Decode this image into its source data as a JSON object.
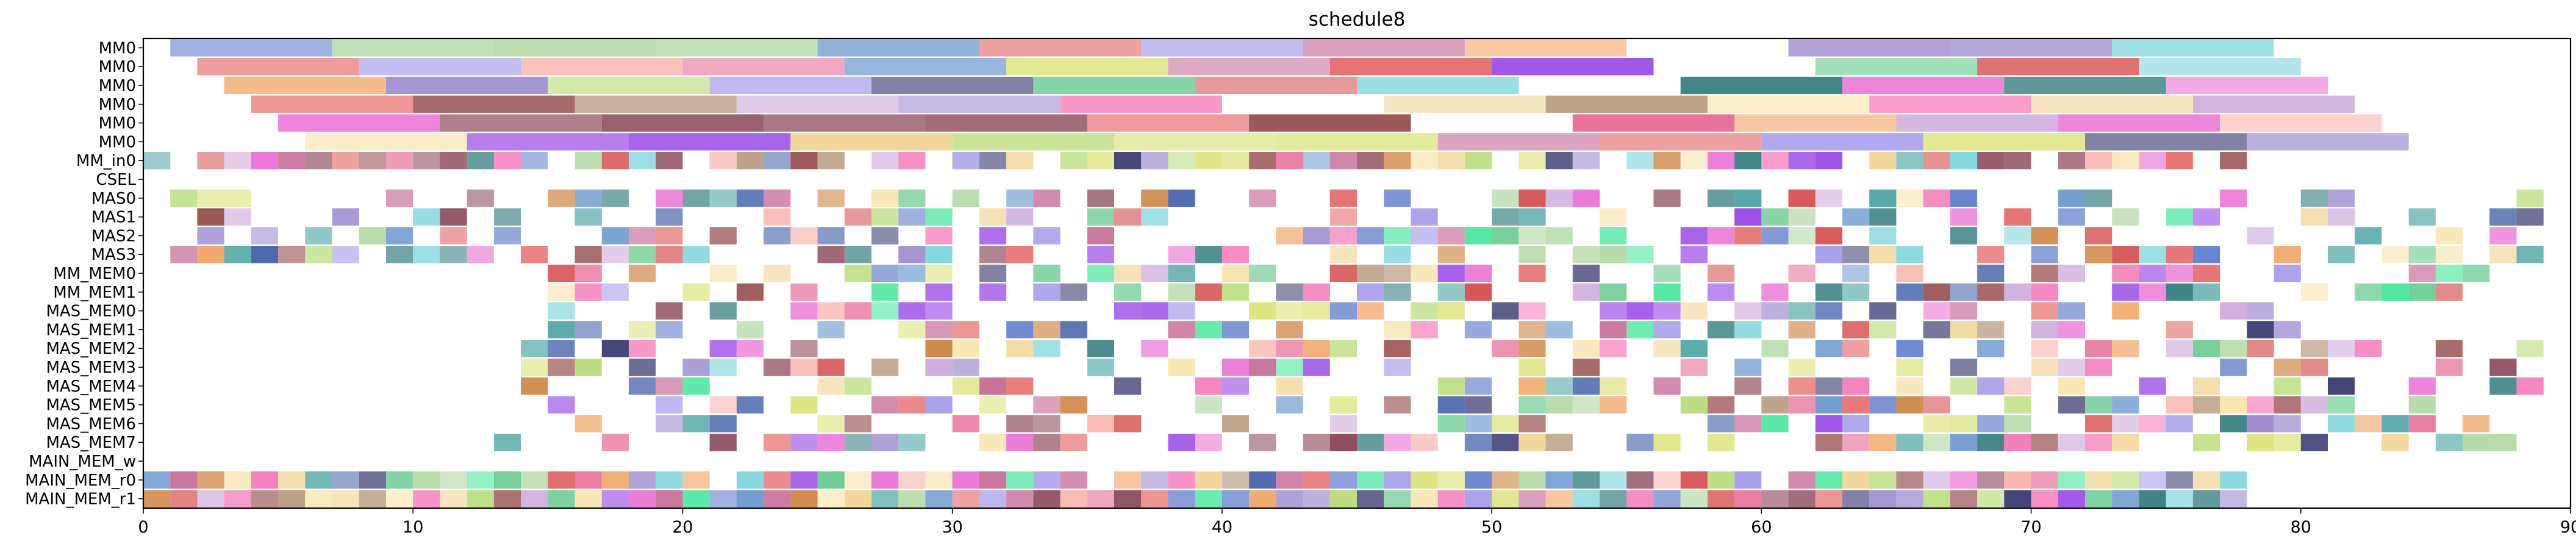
{
  "chart_data": {
    "type": "gantt",
    "title": "schedule8",
    "xlim": [
      0,
      90
    ],
    "x_ticks": [
      "0",
      "10",
      "20",
      "30",
      "40",
      "50",
      "60",
      "70",
      "80",
      "90"
    ],
    "grid": false,
    "legend": "none",
    "rows": [
      "MM0",
      "MM0",
      "MM0",
      "MM0",
      "MM0",
      "MM0",
      "MM_in0",
      "CSEL",
      "MAS0",
      "MAS1",
      "MAS2",
      "MAS3",
      "MM_MEM0",
      "MM_MEM1",
      "MAS_MEM0",
      "MAS_MEM1",
      "MAS_MEM2",
      "MAS_MEM3",
      "MAS_MEM4",
      "MAS_MEM5",
      "MAS_MEM6",
      "MAS_MEM7",
      "MAIN_MEM_w",
      "MAIN_MEM_r0",
      "MAIN_MEM_r1"
    ],
    "long_task_rows": [
      {
        "row": 0,
        "start": 1,
        "duration": 6,
        "end": 79,
        "skip": [
          60
        ]
      },
      {
        "row": 1,
        "start": 2,
        "duration": 6,
        "end": 80,
        "skip": [
          57
        ]
      },
      {
        "row": 2,
        "start": 3,
        "duration": 6,
        "end": 81,
        "skip": [
          52
        ]
      },
      {
        "row": 3,
        "start": 4,
        "duration": 6,
        "end": 82,
        "skip": [
          40
        ]
      },
      {
        "row": 4,
        "start": 5,
        "duration": 6,
        "end": 83,
        "skip": [
          49
        ]
      },
      {
        "row": 5,
        "start": 6,
        "duration": 6,
        "end": 85,
        "skip": []
      }
    ],
    "cell_rows": [
      {
        "row": 6,
        "start": 0,
        "end": 78,
        "density": 0.82
      },
      {
        "row": 8,
        "start": 1,
        "end": 89,
        "density": 0.55
      },
      {
        "row": 9,
        "start": 1,
        "end": 89,
        "density": 0.55
      },
      {
        "row": 10,
        "start": 1,
        "end": 89,
        "density": 0.55
      },
      {
        "row": 11,
        "start": 1,
        "end": 90,
        "density": 0.6
      },
      {
        "row": 12,
        "start": 13,
        "end": 88,
        "density": 0.62
      },
      {
        "row": 13,
        "start": 13,
        "end": 87,
        "density": 0.58
      },
      {
        "row": 14,
        "start": 14,
        "end": 80,
        "density": 0.52
      },
      {
        "row": 15,
        "start": 14,
        "end": 80,
        "density": 0.5
      },
      {
        "row": 16,
        "start": 14,
        "end": 89,
        "density": 0.5
      },
      {
        "row": 17,
        "start": 14,
        "end": 88,
        "density": 0.5
      },
      {
        "row": 18,
        "start": 14,
        "end": 89,
        "density": 0.5
      },
      {
        "row": 19,
        "start": 14,
        "end": 88,
        "density": 0.48
      },
      {
        "row": 20,
        "start": 14,
        "end": 88,
        "density": 0.48
      },
      {
        "row": 21,
        "start": 13,
        "end": 89,
        "density": 0.52
      },
      {
        "row": 23,
        "start": 0,
        "end": 78,
        "density": 0.96
      },
      {
        "row": 24,
        "start": 0,
        "end": 78,
        "density": 0.96
      }
    ]
  }
}
